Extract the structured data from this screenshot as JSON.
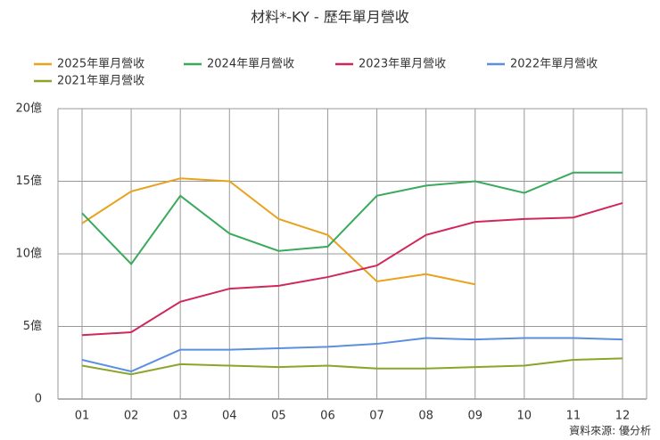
{
  "chart_data": {
    "type": "line",
    "title": "材料*-KY - 歷年單月營收",
    "categories": [
      "01",
      "02",
      "03",
      "04",
      "05",
      "06",
      "07",
      "08",
      "09",
      "10",
      "11",
      "12"
    ],
    "series": [
      {
        "name": "2025年單月營收",
        "color": "#e8a21e",
        "values": [
          12.1,
          14.3,
          15.2,
          15.0,
          12.4,
          11.3,
          8.1,
          8.6,
          7.9,
          null,
          null,
          null
        ]
      },
      {
        "name": "2024年單月營收",
        "color": "#3aaa5c",
        "values": [
          12.8,
          9.3,
          14.0,
          11.4,
          10.2,
          10.5,
          14.0,
          14.7,
          15.0,
          14.2,
          15.6,
          15.6
        ]
      },
      {
        "name": "2023年單月營收",
        "color": "#d0285a",
        "values": [
          4.4,
          4.6,
          6.7,
          7.6,
          7.8,
          8.4,
          9.2,
          11.3,
          12.2,
          12.4,
          12.5,
          13.5
        ]
      },
      {
        "name": "2022年單月營收",
        "color": "#5b8fe0",
        "values": [
          2.7,
          1.9,
          3.4,
          3.4,
          3.5,
          3.6,
          3.8,
          4.2,
          4.1,
          4.2,
          4.2,
          4.1
        ]
      },
      {
        "name": "2021年單月營收",
        "color": "#8aa52a",
        "values": [
          2.3,
          1.7,
          2.4,
          2.3,
          2.2,
          2.3,
          2.1,
          2.1,
          2.2,
          2.3,
          2.7,
          2.8
        ]
      }
    ],
    "ylim": [
      0,
      20
    ],
    "yticks": [
      0,
      {
        "value": 5,
        "label": "5億"
      },
      {
        "value": 10,
        "label": "10億"
      },
      {
        "value": 15,
        "label": "15億"
      },
      {
        "value": 20,
        "label": "20億"
      }
    ],
    "grid": true,
    "source": "資料來源: 優分析"
  }
}
